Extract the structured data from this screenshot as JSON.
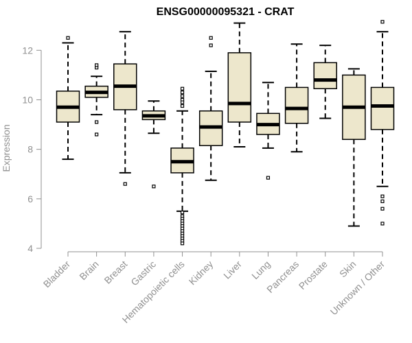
{
  "chart_data": {
    "type": "boxplot",
    "title": "ENSG00000095321 - CRAT",
    "xlabel": "",
    "ylabel": "Expression",
    "ylim": [
      4,
      13.2
    ],
    "yticks": [
      4,
      6,
      8,
      10,
      12
    ],
    "grid": false,
    "colors": {
      "box_fill": "#ede7cc",
      "median": "#000000",
      "outline": "#000000",
      "axis": "#909090"
    },
    "categories": [
      "Bladder",
      "Brain",
      "Breast",
      "Gastric",
      "Hematopoietic cells",
      "Kidney",
      "Liver",
      "Lung",
      "Pancreas",
      "Prostate",
      "Skin",
      "Unknown / Other"
    ],
    "boxes": [
      {
        "name": "Bladder",
        "whisker_low": 7.6,
        "q1": 9.1,
        "median": 9.7,
        "q3": 10.35,
        "whisker_high": 12.3,
        "outliers": [
          12.5
        ]
      },
      {
        "name": "Brain",
        "whisker_low": 9.4,
        "q1": 10.1,
        "median": 10.3,
        "q3": 10.55,
        "whisker_high": 10.95,
        "outliers": [
          11.3,
          11.4,
          9.1,
          8.6
        ]
      },
      {
        "name": "Breast",
        "whisker_low": 7.05,
        "q1": 9.6,
        "median": 10.55,
        "q3": 11.45,
        "whisker_high": 12.75,
        "outliers": [
          6.6
        ]
      },
      {
        "name": "Gastric",
        "whisker_low": 8.65,
        "q1": 9.2,
        "median": 9.35,
        "q3": 9.55,
        "whisker_high": 9.95,
        "outliers": [
          6.5
        ]
      },
      {
        "name": "Hematopoietic cells",
        "whisker_low": 5.5,
        "q1": 7.05,
        "median": 7.5,
        "q3": 8.05,
        "whisker_high": 9.55,
        "outliers": [
          10.45,
          10.3,
          10.15,
          10.0,
          9.9,
          9.75,
          5.45,
          5.3,
          5.2,
          5.1,
          5.0,
          4.9,
          4.8,
          4.7,
          4.6,
          4.5,
          4.4,
          4.3,
          4.2
        ]
      },
      {
        "name": "Kidney",
        "whisker_low": 6.75,
        "q1": 8.15,
        "median": 8.9,
        "q3": 9.55,
        "whisker_high": 11.15,
        "outliers": [
          12.5,
          12.2
        ]
      },
      {
        "name": "Liver",
        "whisker_low": 8.1,
        "q1": 9.1,
        "median": 9.85,
        "q3": 11.9,
        "whisker_high": 13.1,
        "outliers": []
      },
      {
        "name": "Lung",
        "whisker_low": 8.05,
        "q1": 8.6,
        "median": 9.0,
        "q3": 9.45,
        "whisker_high": 10.7,
        "outliers": [
          6.85
        ]
      },
      {
        "name": "Pancreas",
        "whisker_low": 7.9,
        "q1": 9.05,
        "median": 9.65,
        "q3": 10.5,
        "whisker_high": 12.25,
        "outliers": []
      },
      {
        "name": "Prostate",
        "whisker_low": 9.25,
        "q1": 10.45,
        "median": 10.8,
        "q3": 11.5,
        "whisker_high": 12.2,
        "outliers": []
      },
      {
        "name": "Skin",
        "whisker_low": 4.9,
        "q1": 8.4,
        "median": 9.7,
        "q3": 11.0,
        "whisker_high": 11.25,
        "outliers": []
      },
      {
        "name": "Unknown / Other",
        "whisker_low": 6.5,
        "q1": 8.8,
        "median": 9.75,
        "q3": 10.5,
        "whisker_high": 12.75,
        "outliers": [
          13.15,
          6.1,
          5.9,
          5.6,
          5.0
        ]
      }
    ]
  }
}
